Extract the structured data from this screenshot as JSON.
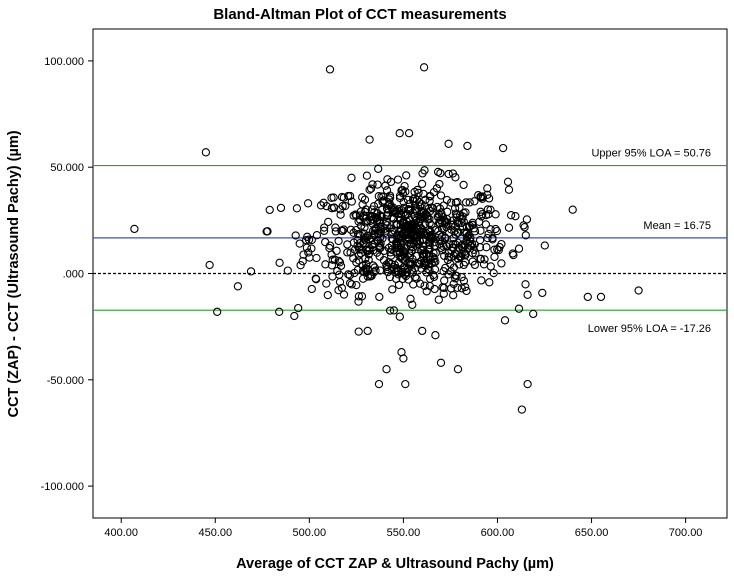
{
  "chart_data": {
    "type": "scatter",
    "title": "Bland-Altman Plot of CCT measurements",
    "xlabel": "Average of CCT ZAP & Ultrasound Pachy (µm)",
    "ylabel": "CCT (ZAP) - CCT (Ultrasound Pachy) (µm)",
    "xlim": [
      385,
      722
    ],
    "ylim": [
      -115,
      115
    ],
    "x_ticks": [
      400,
      450,
      500,
      550,
      600,
      650,
      700
    ],
    "x_tick_labels": [
      "400.00",
      "450.00",
      "500.00",
      "550.00",
      "600.00",
      "650.00",
      "700.00"
    ],
    "y_ticks": [
      100,
      50,
      0,
      -50,
      -100
    ],
    "y_tick_labels": [
      "100.000",
      "50.000",
      ".000",
      "-50.000",
      "-100.000"
    ],
    "grid": false,
    "reference_lines": [
      {
        "label": "Upper 95% LOA = 50.76",
        "value": 50.76,
        "color": "#2e9e2e",
        "style": "solid"
      },
      {
        "label": "Mean = 16.75",
        "value": 16.75,
        "color": "#3b4fd0",
        "style": "solid"
      },
      {
        "label": "",
        "value": 0,
        "color": "#000000",
        "style": "dashed"
      },
      {
        "label": "Lower 95% LOA = -17.26",
        "value": -17.26,
        "color": "#2e9e2e",
        "style": "solid"
      }
    ],
    "marker": {
      "shape": "open-circle",
      "color": "#000000"
    },
    "outlier_points": [
      [
        407,
        21
      ],
      [
        445,
        57
      ],
      [
        447,
        4
      ],
      [
        451,
        -18
      ],
      [
        462,
        -6
      ],
      [
        469,
        1
      ],
      [
        511,
        96
      ],
      [
        561,
        97
      ],
      [
        532,
        63
      ],
      [
        553,
        66
      ],
      [
        548,
        66
      ],
      [
        574,
        61
      ],
      [
        584,
        60
      ],
      [
        603,
        59
      ],
      [
        640,
        30
      ],
      [
        648,
        -11
      ],
      [
        655,
        -11
      ],
      [
        675,
        -8
      ],
      [
        537,
        -52
      ],
      [
        551,
        -52
      ],
      [
        570,
        -42
      ],
      [
        579,
        -45
      ],
      [
        613,
        -64
      ],
      [
        616,
        -52
      ],
      [
        616,
        -10
      ],
      [
        619,
        -19
      ],
      [
        604,
        -22
      ],
      [
        484,
        -18
      ],
      [
        492,
        -20
      ],
      [
        531,
        -27
      ],
      [
        549,
        -37
      ],
      [
        550,
        -40
      ],
      [
        560,
        -27
      ],
      [
        567,
        -29
      ],
      [
        541,
        -45
      ]
    ],
    "cluster_points": {
      "count": 780,
      "center": [
        553,
        16.75
      ],
      "x_sd": 26,
      "y_sd": 13,
      "x_range": [
        474,
        632
      ],
      "y_range": [
        -28,
        56
      ]
    }
  }
}
